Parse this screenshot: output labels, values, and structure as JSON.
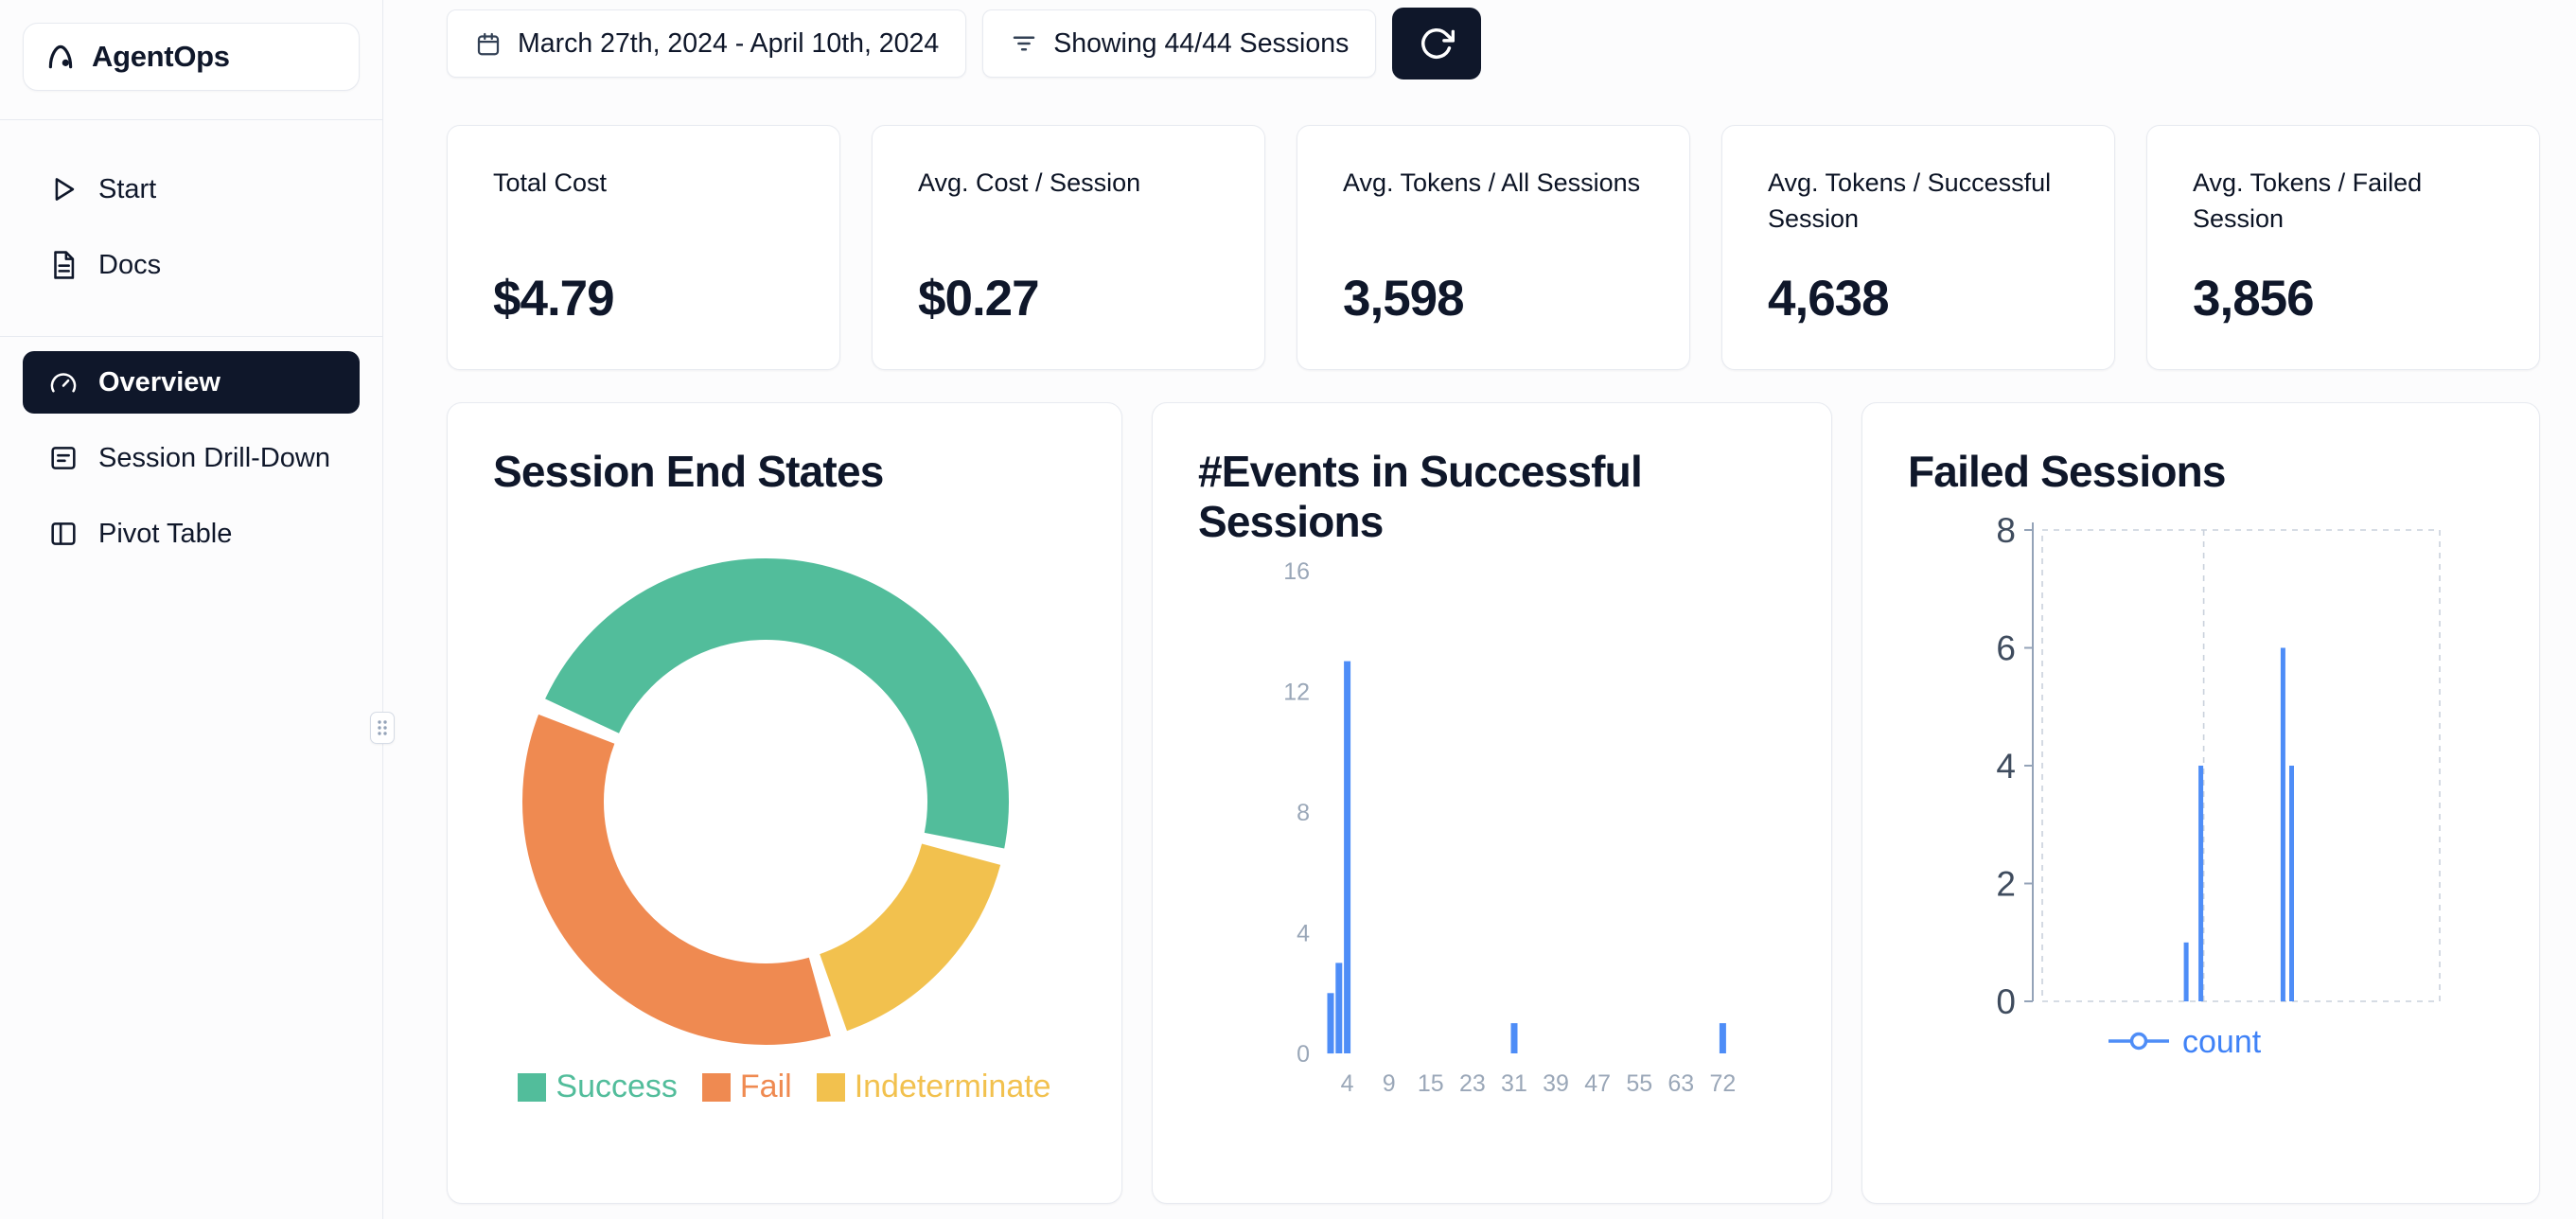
{
  "brand": {
    "name": "AgentOps"
  },
  "sidebar": {
    "items": [
      {
        "label": "Start",
        "icon": "play-icon"
      },
      {
        "label": "Docs",
        "icon": "docs-icon"
      }
    ],
    "nav": [
      {
        "label": "Overview",
        "icon": "gauge-icon",
        "active": true
      },
      {
        "label": "Session Drill-Down",
        "icon": "session-icon",
        "active": false
      },
      {
        "label": "Pivot Table",
        "icon": "pivot-icon",
        "active": false
      }
    ]
  },
  "topbar": {
    "date_range": "March 27th, 2024 - April 10th, 2024",
    "sessions_filter": "Showing 44/44 Sessions"
  },
  "stats": [
    {
      "label": "Total Cost",
      "value": "$4.79"
    },
    {
      "label": "Avg. Cost / Session",
      "value": "$0.27"
    },
    {
      "label": "Avg. Tokens / All Sessions",
      "value": "3,598"
    },
    {
      "label": "Avg. Tokens / Successful Session",
      "value": "4,638"
    },
    {
      "label": "Avg. Tokens / Failed Session",
      "value": "3,856"
    }
  ],
  "chart_data": [
    {
      "type": "pie",
      "title": "Session End States",
      "donut": true,
      "total_sessions": 44,
      "start_angle_deg": -65,
      "segments": [
        {
          "label": "Success",
          "value": 21,
          "color": "#52bd9b"
        },
        {
          "label": "Indeterminate",
          "value": 7,
          "color": "#f2c14e"
        },
        {
          "label": "Fail",
          "value": 16,
          "color": "#ef8a51"
        }
      ],
      "legend": [
        {
          "label": "Success",
          "color": "#52bd9b"
        },
        {
          "label": "Fail",
          "color": "#ef8a51"
        },
        {
          "label": "Indeterminate",
          "color": "#f2c14e"
        }
      ],
      "legend_position": "bottom"
    },
    {
      "type": "bar",
      "title": "#Events in Successful Sessions",
      "color": "#4e8df7",
      "ylim": [
        0,
        16
      ],
      "yticks": [
        0,
        4,
        8,
        12,
        16
      ],
      "xticks": [
        "4",
        "9",
        "15",
        "23",
        "31",
        "39",
        "47",
        "55",
        "63",
        "72"
      ],
      "bars": [
        {
          "x": 2,
          "count": 2
        },
        {
          "x": 3,
          "count": 3
        },
        {
          "x": 4,
          "count": 13
        },
        {
          "x": 31,
          "count": 1
        },
        {
          "x": 72,
          "count": 1
        }
      ],
      "grid": false
    },
    {
      "type": "line",
      "title": "Failed Sessions",
      "color": "#4e8df7",
      "ylim": [
        0,
        8
      ],
      "yticks": [
        0,
        2,
        4,
        6,
        8
      ],
      "series": [
        {
          "name": "count",
          "color": "#4e8df7"
        }
      ],
      "spikes": [
        {
          "x_frac": 0.377,
          "value": 1
        },
        {
          "x_frac": 0.413,
          "value": 4
        },
        {
          "x_frac": 0.615,
          "value": 6
        },
        {
          "x_frac": 0.636,
          "value": 4
        }
      ],
      "grid": "dashed",
      "legend_position": "bottom"
    }
  ]
}
